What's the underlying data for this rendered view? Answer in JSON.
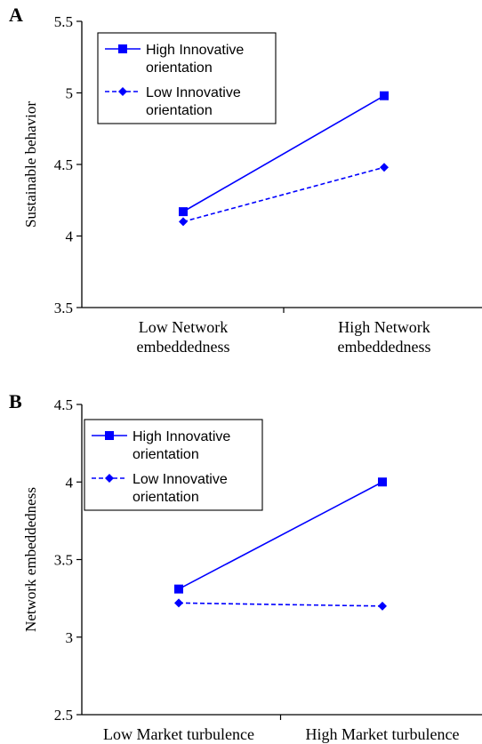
{
  "chart_data": [
    {
      "panel_label": "A",
      "type": "line",
      "categories": [
        [
          "Low Network",
          "embeddedness"
        ],
        [
          "High Network",
          "embeddedness"
        ]
      ],
      "ylabel": "Sustainable behavior",
      "ylim": [
        3.5,
        5.5
      ],
      "yticks": [
        3.5,
        4,
        4.5,
        5,
        5.5
      ],
      "ytick_labels": [
        "3.5",
        "4",
        "4.5",
        "5",
        "5.5"
      ],
      "grid": false,
      "legend_position": "top-left",
      "series": [
        {
          "name": "High Innovative orientation",
          "legend_lines": [
            "High Innovative",
            "orientation"
          ],
          "values": [
            4.17,
            4.98
          ],
          "marker": "square",
          "line": "solid",
          "color": "#0000ff"
        },
        {
          "name": "Low Innovative orientation",
          "legend_lines": [
            "Low Innovative",
            "orientation"
          ],
          "values": [
            4.1,
            4.48
          ],
          "marker": "diamond",
          "line": "dashed",
          "color": "#0000ff"
        }
      ]
    },
    {
      "panel_label": "B",
      "type": "line",
      "categories": [
        [
          "Low Market turbulence"
        ],
        [
          "High Market turbulence"
        ]
      ],
      "ylabel": "Network embeddedness",
      "ylim": [
        2.5,
        4.5
      ],
      "yticks": [
        2.5,
        3,
        3.5,
        4,
        4.5
      ],
      "ytick_labels": [
        "2.5",
        "3",
        "3.5",
        "4",
        "4.5"
      ],
      "grid": false,
      "legend_position": "top-left",
      "series": [
        {
          "name": "High Innovative orientation",
          "legend_lines": [
            "High Innovative",
            "orientation"
          ],
          "values": [
            3.31,
            4.0
          ],
          "marker": "square",
          "line": "solid",
          "color": "#0000ff"
        },
        {
          "name": "Low Innovative orientation",
          "legend_lines": [
            "Low Innovative",
            "orientation"
          ],
          "values": [
            3.22,
            3.2
          ],
          "marker": "diamond",
          "line": "dashed",
          "color": "#0000ff"
        }
      ]
    }
  ]
}
